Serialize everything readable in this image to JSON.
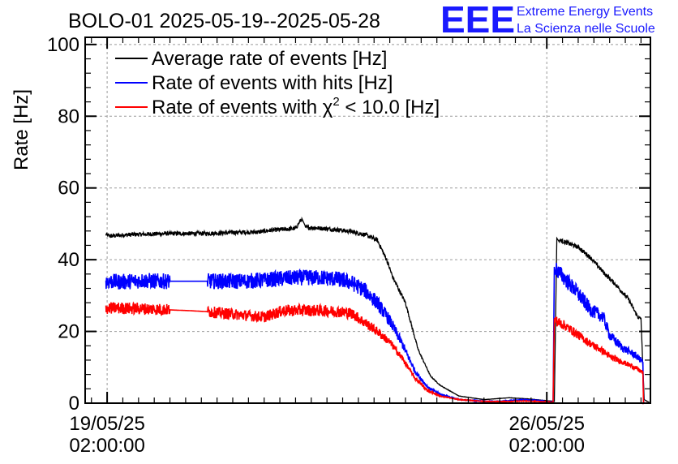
{
  "chart_data": {
    "type": "line",
    "title": "BOLO-01 2025-05-19--2025-05-28",
    "ylabel": "Rate [Hz]",
    "xlabel": "",
    "xlim": [
      -0.35,
      8.65
    ],
    "ylim": [
      0,
      102
    ],
    "x_unit": "days since 19/05/25 02:00:00",
    "xticks": [
      {
        "value": 0,
        "line1": "19/05/25",
        "line2": "02:00:00"
      },
      {
        "value": 7,
        "line1": "26/05/25",
        "line2": "02:00:00"
      }
    ],
    "yticks": [
      0,
      20,
      40,
      60,
      80,
      100
    ],
    "grid": true,
    "legend": {
      "position": "top-left",
      "entries": [
        {
          "label": "Average rate of events [Hz]",
          "color": "#000000"
        },
        {
          "label": "Rate of events with hits [Hz]",
          "color": "#0000ff"
        },
        {
          "label_prefix": "Rate of events with ",
          "chi": "χ",
          "sup": "2",
          "label_suffix": " < 10.0 [Hz]",
          "color": "#ff0000"
        }
      ]
    },
    "series": [
      {
        "name": "Average rate of events [Hz]",
        "color": "#000000",
        "noise": 0.6,
        "x": [
          -0.02,
          0.05,
          0.2,
          0.4,
          0.6,
          0.8,
          1.0,
          1.2,
          1.5,
          1.8,
          2.0,
          2.4,
          2.6,
          3.0,
          3.1,
          3.15,
          3.3,
          3.5,
          3.7,
          3.9,
          4.1,
          4.3,
          4.45,
          4.55,
          4.75,
          4.95,
          5.15,
          5.3,
          5.6,
          6.0,
          6.4,
          6.7,
          7.0,
          7.12,
          7.16,
          7.2,
          7.5,
          7.7,
          7.9,
          8.1,
          8.3,
          8.45,
          8.5,
          8.55,
          8.65
        ],
        "y": [
          47.0,
          46.6,
          46.8,
          47.0,
          47.1,
          47.2,
          47.3,
          47.3,
          47.3,
          47.4,
          47.6,
          47.7,
          48.2,
          48.7,
          51.5,
          49.0,
          48.9,
          48.6,
          48.3,
          47.8,
          47.0,
          45.5,
          40.0,
          35.0,
          28.0,
          15.0,
          7.5,
          5.0,
          2.0,
          1.0,
          1.5,
          1.2,
          0.7,
          0.5,
          46.0,
          45.5,
          43.5,
          40.5,
          36.5,
          33.0,
          29.0,
          24.0,
          23.5,
          1.0,
          0.0
        ]
      },
      {
        "name": "Rate of events with hits [Hz]",
        "color": "#0000ff",
        "noise": 2.2,
        "x": [
          -0.02,
          0.2,
          0.4,
          0.6,
          0.8,
          1.0,
          1.3,
          1.6,
          1.9,
          2.2,
          2.5,
          2.8,
          3.1,
          3.4,
          3.7,
          3.9,
          4.1,
          4.3,
          4.5,
          4.7,
          4.9,
          5.1,
          5.3,
          5.6,
          6.0,
          6.3,
          6.6,
          6.85,
          7.0,
          7.1,
          7.12,
          7.14,
          7.3,
          7.5,
          7.7,
          7.9,
          8.0,
          8.2,
          8.4,
          8.53,
          8.54,
          8.6
        ],
        "y": [
          34.0,
          33.8,
          34.0,
          34.2,
          34.0,
          34.0,
          34.0,
          34.0,
          34.0,
          34.0,
          34.3,
          34.8,
          35.0,
          35.0,
          34.5,
          33.5,
          31.5,
          28.0,
          23.0,
          16.5,
          9.0,
          4.5,
          2.5,
          1.0,
          0.5,
          0.5,
          1.0,
          0.8,
          0.4,
          0.3,
          38.0,
          37.5,
          34.5,
          30.5,
          26.0,
          24.0,
          19.0,
          15.5,
          13.5,
          11.5,
          0.0,
          0.0
        ]
      },
      {
        "name": "Rate of events with chi2 < 10.0 [Hz]",
        "color": "#ff0000",
        "noise": 1.9,
        "x": [
          -0.02,
          0.2,
          0.4,
          0.6,
          0.8,
          1.0,
          1.3,
          1.6,
          1.9,
          2.2,
          2.5,
          2.8,
          3.1,
          3.4,
          3.7,
          3.9,
          4.1,
          4.3,
          4.5,
          4.7,
          4.9,
          5.1,
          5.3,
          5.6,
          6.0,
          6.3,
          6.6,
          6.85,
          7.0,
          7.1,
          7.12,
          7.14,
          7.3,
          7.5,
          7.7,
          7.9,
          8.0,
          8.2,
          8.4,
          8.53,
          8.54,
          8.6
        ],
        "y": [
          26.5,
          26.5,
          26.4,
          26.3,
          26.2,
          26.0,
          25.8,
          25.5,
          25.0,
          24.5,
          24.0,
          25.8,
          25.9,
          25.8,
          25.5,
          25.0,
          22.5,
          20.0,
          17.0,
          12.5,
          7.0,
          3.5,
          2.0,
          1.0,
          0.5,
          0.4,
          0.6,
          0.5,
          0.3,
          0.2,
          23.5,
          23.0,
          21.5,
          19.0,
          16.5,
          14.5,
          13.0,
          11.5,
          10.0,
          8.5,
          0.0,
          0.0
        ]
      }
    ]
  },
  "logo": {
    "letters": "EEE",
    "line1": "Extreme Energy Events",
    "line2": "La Scienza nelle Scuole",
    "color": "#1a1aff"
  }
}
